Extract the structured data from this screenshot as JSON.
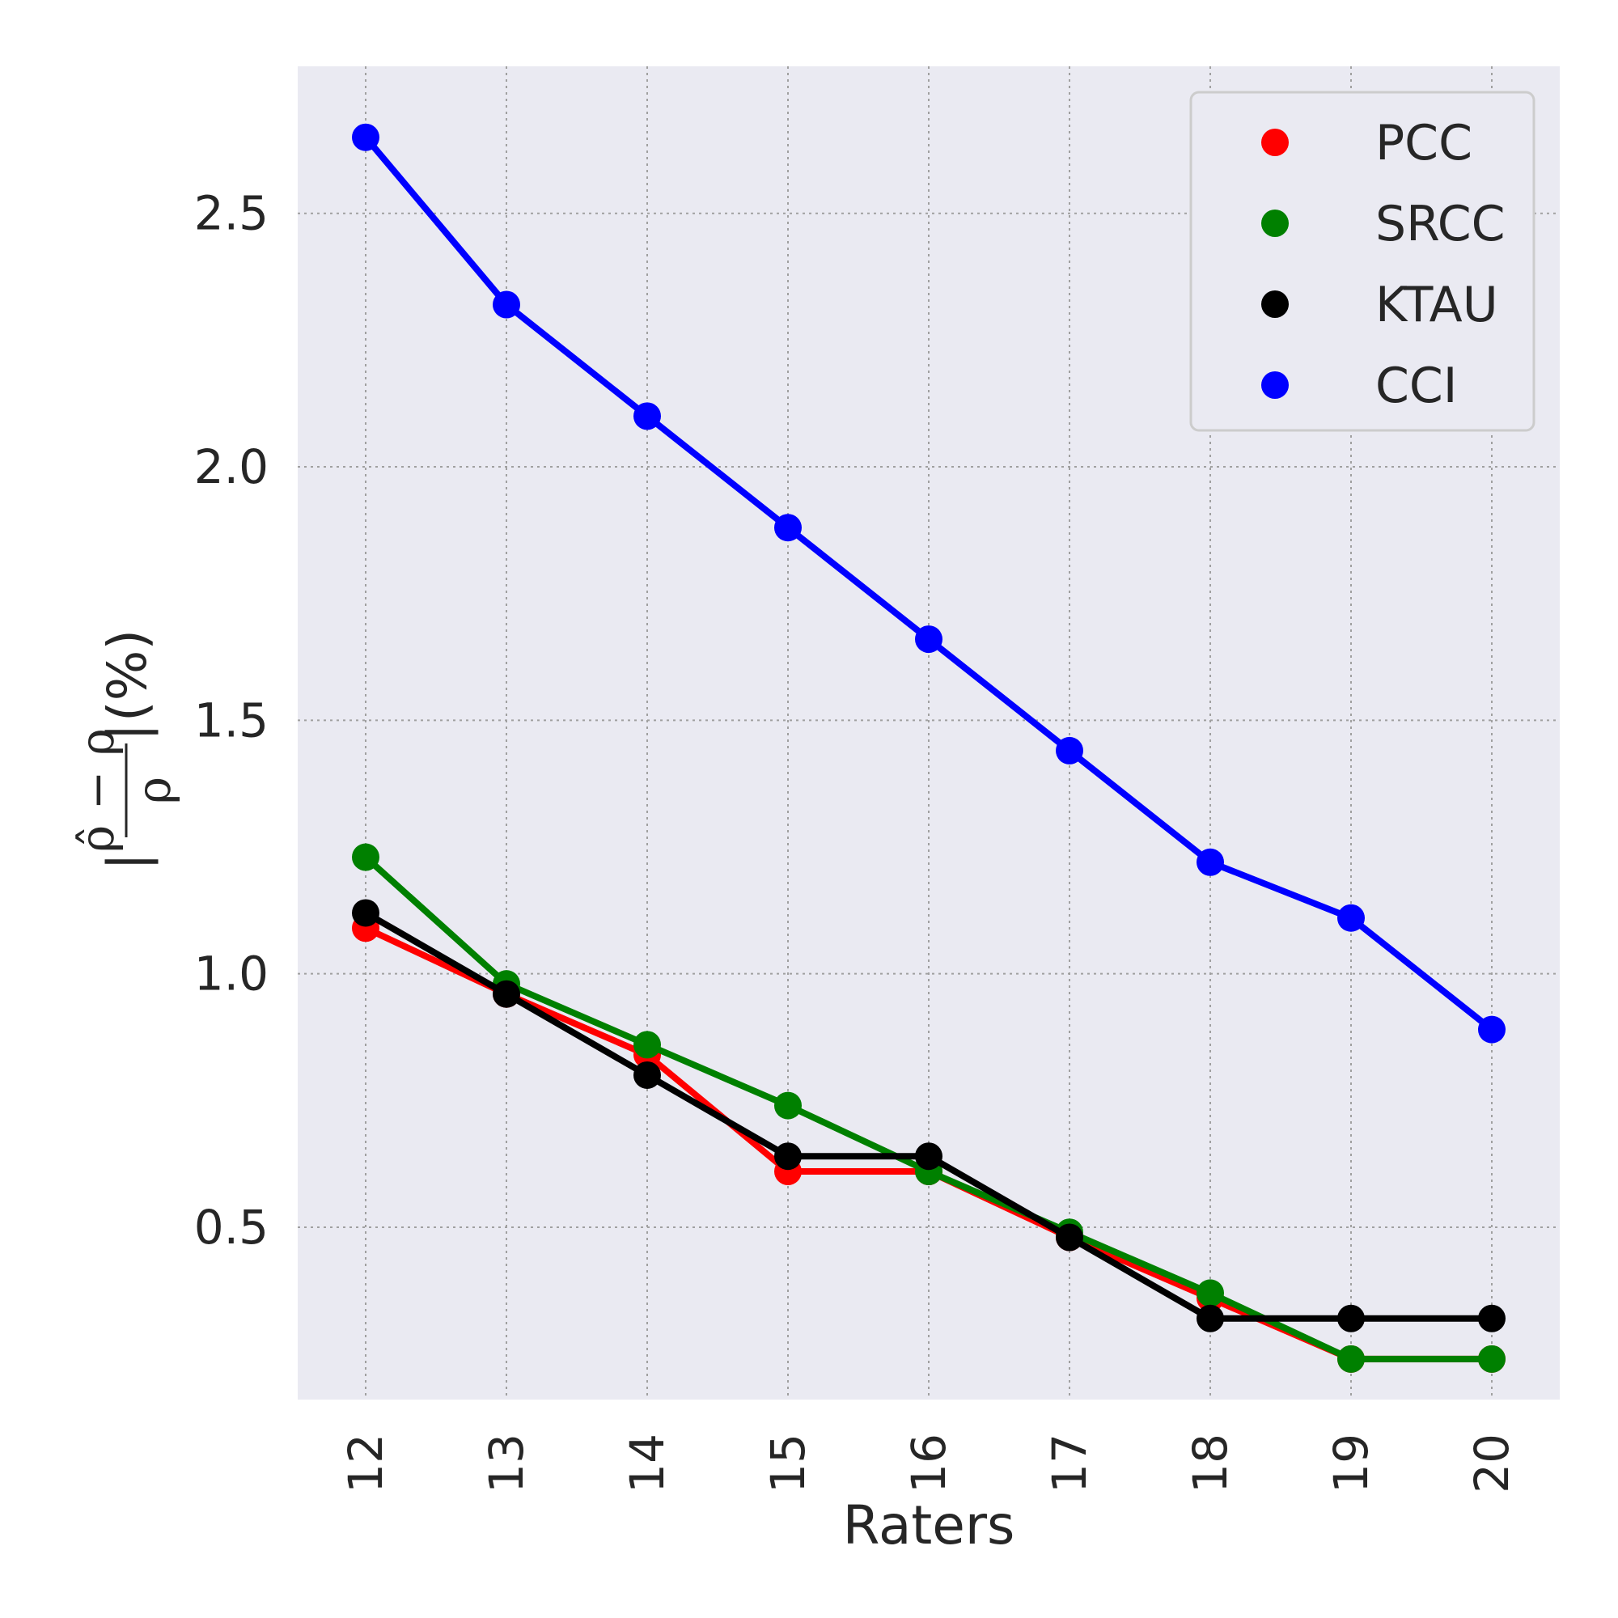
{
  "chart_data": {
    "type": "line",
    "xlabel": "Raters",
    "ylabel": "|ρ̂ − ρ / ρ| (%)",
    "ylabel_parts": {
      "bar_left": "|",
      "numerator": "ρ̂ − ρ",
      "denominator": "ρ",
      "bar_right": "|",
      "unit": "(%)"
    },
    "categories": [
      "12",
      "13",
      "14",
      "15",
      "16",
      "17",
      "18",
      "19",
      "20"
    ],
    "ylim": [
      0.16,
      2.79
    ],
    "yticks": [
      0.5,
      1.0,
      1.5,
      2.0,
      2.5
    ],
    "ytick_labels": [
      "0.5",
      "1.0",
      "1.5",
      "2.0",
      "2.5"
    ],
    "grid": true,
    "legend_position": "top-right",
    "series": [
      {
        "name": "PCC",
        "color": "#ff0000",
        "values": [
          1.09,
          0.96,
          0.84,
          0.61,
          0.61,
          0.48,
          0.36,
          0.24,
          0.24
        ]
      },
      {
        "name": "SRCC",
        "color": "#008000",
        "values": [
          1.23,
          0.98,
          0.86,
          0.74,
          0.61,
          0.49,
          0.37,
          0.24,
          0.24
        ]
      },
      {
        "name": "KTAU",
        "color": "#000000",
        "values": [
          1.12,
          0.96,
          0.8,
          0.64,
          0.64,
          0.48,
          0.32,
          0.32,
          0.32
        ]
      },
      {
        "name": "CCI",
        "color": "#0000ff",
        "values": [
          2.65,
          2.32,
          2.1,
          1.88,
          1.66,
          1.44,
          1.22,
          1.11,
          0.89
        ]
      }
    ],
    "colors": {
      "plot_background": "#eaeaf2",
      "grid": "#a0a0a0",
      "text": "#262626"
    }
  }
}
